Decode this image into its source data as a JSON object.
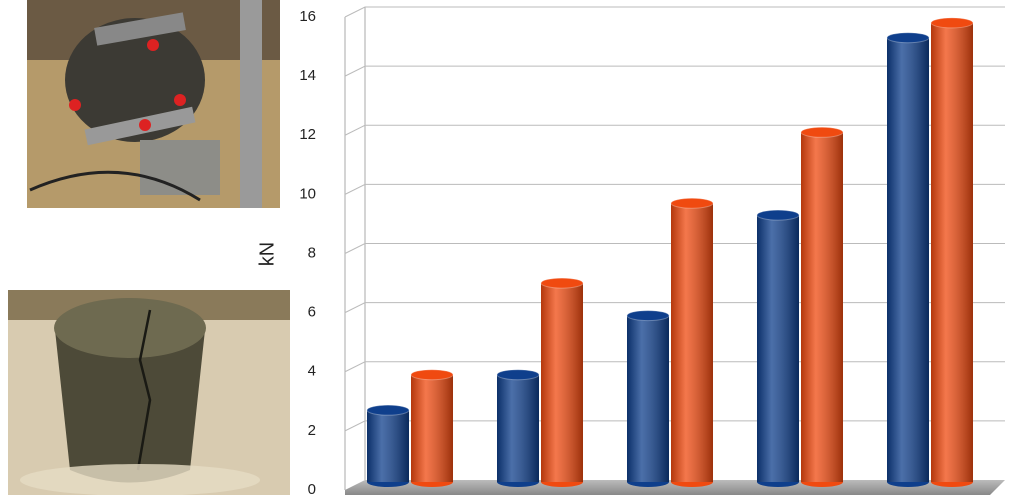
{
  "chart_data": {
    "type": "bar",
    "y_label": "kN",
    "categories": [
      null,
      null,
      null,
      null,
      null
    ],
    "series": [
      {
        "color": "#0f3f8c",
        "values": [
          2.7,
          3.9,
          5.9,
          9.3,
          15.3
        ]
      },
      {
        "color": "#f04a10",
        "values": [
          3.9,
          7.0,
          9.7,
          12.1,
          15.8
        ]
      }
    ],
    "ylim": [
      0,
      16
    ],
    "yticks": [
      0,
      2,
      4,
      6,
      8,
      10,
      12,
      14,
      16
    ],
    "grid": true
  }
}
